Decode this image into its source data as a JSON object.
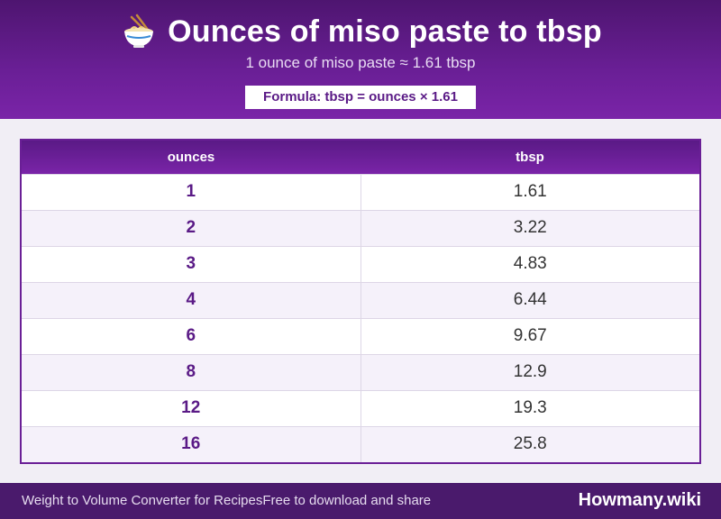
{
  "header": {
    "icon": "noodle-bowl-icon",
    "title": "Ounces of miso paste to tbsp",
    "subtitle": "1 ounce of miso paste ≈ 1.61 tbsp",
    "formula": "Formula: tbsp = ounces × 1.61"
  },
  "table": {
    "columns": [
      "ounces",
      "tbsp"
    ],
    "rows": [
      [
        "1",
        "1.61"
      ],
      [
        "2",
        "3.22"
      ],
      [
        "3",
        "4.83"
      ],
      [
        "4",
        "6.44"
      ],
      [
        "6",
        "9.67"
      ],
      [
        "8",
        "12.9"
      ],
      [
        "12",
        "19.3"
      ],
      [
        "16",
        "25.8"
      ]
    ]
  },
  "footer": {
    "left_primary": "Weight to Volume Converter for Recipes",
    "left_secondary": "Free to download and share",
    "brand": "Howmany.wiki"
  },
  "colors": {
    "header_purple": "#6a1f96",
    "accent_purple": "#5a1a86",
    "footer_purple": "#4a1a6c"
  }
}
